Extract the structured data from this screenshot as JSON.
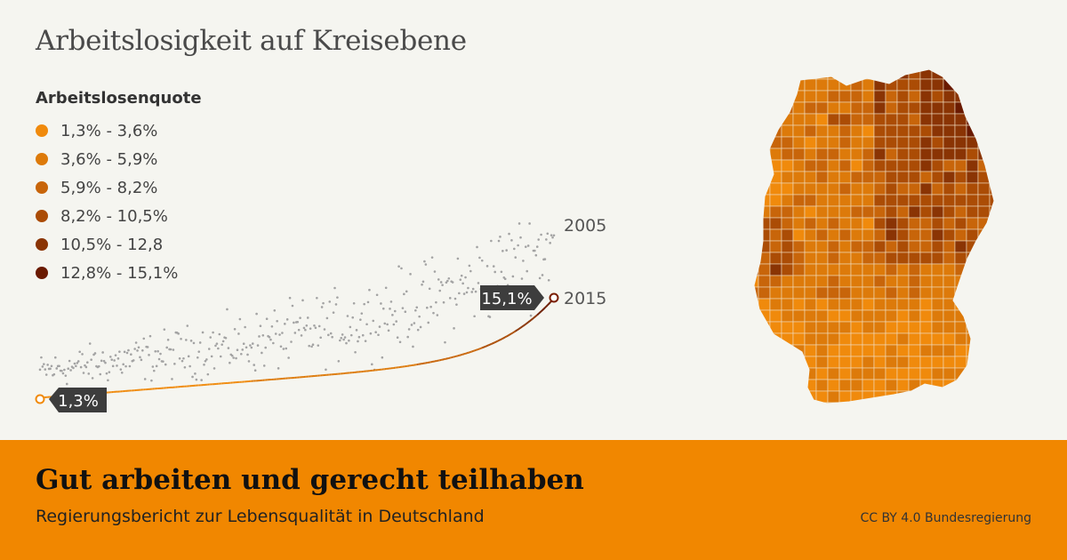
{
  "title": "Arbeitslosigkeit auf Kreisebene",
  "legend": {
    "title": "Arbeitslosenquote",
    "items": [
      {
        "label": "1,3% - 3,6%",
        "color": "#f08a0c"
      },
      {
        "label": "3,6% - 5,9%",
        "color": "#dd7a0a"
      },
      {
        "label": "5,9% - 8,2%",
        "color": "#c8650a"
      },
      {
        "label": "8,2% - 10,5%",
        "color": "#ab4c05"
      },
      {
        "label": "10,5% - 12,8",
        "color": "#8a3404"
      },
      {
        "label": "12,8% - 15,1%",
        "color": "#6a1a00"
      }
    ]
  },
  "chart_data": {
    "type": "scatter",
    "description_series": [
      {
        "name": "2005"
      },
      {
        "name": "2015"
      }
    ],
    "labels": {
      "min": "1,3%",
      "max": "15,1%"
    },
    "ylim": [
      0,
      26
    ],
    "count": 402,
    "grid": false
  },
  "map": {
    "colors": [
      "#f08a0c",
      "#dd7a0a",
      "#c8650a",
      "#ab4c05",
      "#8a3404",
      "#6a1a00"
    ]
  },
  "footer": {
    "title": "Gut arbeiten und gerecht teilhaben",
    "subtitle": "Regierungsbericht zur Lebensqualität in Deutschland",
    "license": "CC BY 4.0 Bundesregierung"
  }
}
